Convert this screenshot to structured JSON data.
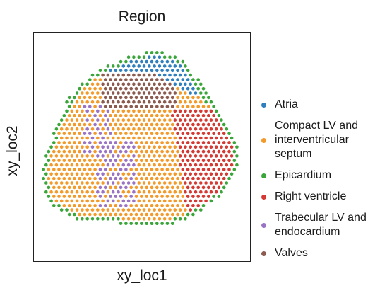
{
  "chart_data": {
    "type": "scatter",
    "title": "Region",
    "xlabel": "xy_loc1",
    "ylabel": "xy_loc2",
    "xlim": [
      0,
      100
    ],
    "ylim": [
      0,
      100
    ],
    "grid": false,
    "ticks_shown": false,
    "legend_position": "right",
    "note": "Spatial transcriptomics spot map; point positions approximate region layout.",
    "series": [
      {
        "name": "Atria",
        "color": "#2f7fbf"
      },
      {
        "name": "Compact LV and interventricular septum",
        "color": "#f39a2a"
      },
      {
        "name": "Epicardium",
        "color": "#3aa63a"
      },
      {
        "name": "Right ventricle",
        "color": "#d43a33"
      },
      {
        "name": "Trabecular LV and endocardium",
        "color": "#9a73c4"
      },
      {
        "name": "Valves",
        "color": "#8c5a4e"
      }
    ]
  },
  "legend": {
    "items": [
      {
        "lines": [
          "Atria"
        ],
        "color": "#2f7fbf"
      },
      {
        "lines": [
          "Compact LV and",
          "interventricular",
          "septum"
        ],
        "color": "#f39a2a"
      },
      {
        "lines": [
          "Epicardium"
        ],
        "color": "#3aa63a"
      },
      {
        "lines": [
          "Right ventricle"
        ],
        "color": "#d43a33"
      },
      {
        "lines": [
          "Trabecular LV and",
          "endocardium"
        ],
        "color": "#9a73c4"
      },
      {
        "lines": [
          "Valves"
        ],
        "color": "#8c5a4e"
      }
    ]
  }
}
